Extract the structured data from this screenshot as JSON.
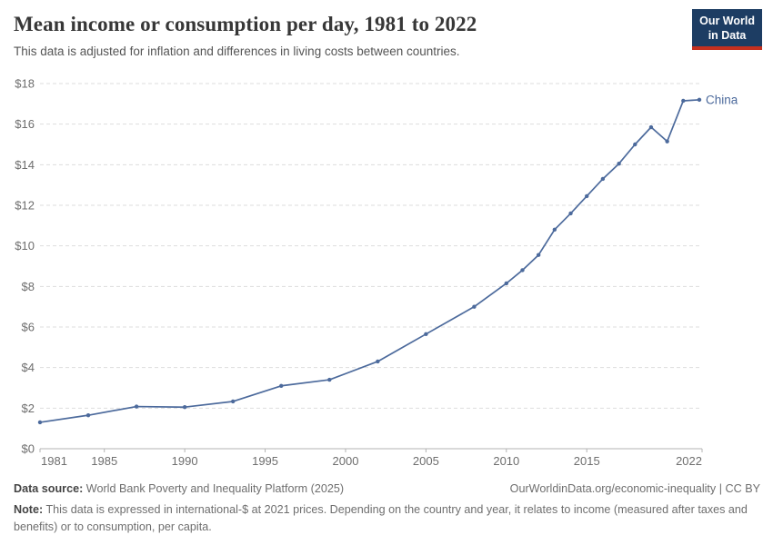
{
  "header": {
    "title": "Mean income or consumption per day, 1981 to 2022",
    "subtitle": "This data is adjusted for inflation and differences in living costs between countries.",
    "logo_line1": "Our World",
    "logo_line2": "in Data"
  },
  "chart_data": {
    "type": "line",
    "title": "Mean income or consumption per day, 1981 to 2022",
    "xlabel": "",
    "ylabel": "",
    "xlim": [
      1981,
      2022
    ],
    "ylim": [
      0,
      18
    ],
    "grid": "dashed horizontal gridlines",
    "legend_position": "label at end of line",
    "x_tick_values": [
      1981,
      1985,
      1990,
      1995,
      2000,
      2005,
      2010,
      2015,
      2022
    ],
    "x_tick_labels": [
      "1981",
      "1985",
      "1990",
      "1995",
      "2000",
      "2005",
      "2010",
      "2015",
      "2022"
    ],
    "y_tick_values": [
      0,
      2,
      4,
      6,
      8,
      10,
      12,
      14,
      16,
      18
    ],
    "y_tick_labels": [
      "$0",
      "$2",
      "$4",
      "$6",
      "$8",
      "$10",
      "$12",
      "$14",
      "$16",
      "$18"
    ],
    "series": [
      {
        "name": "China",
        "color": "#4C6A9C",
        "x": [
          1981,
          1984,
          1987,
          1990,
          1993,
          1996,
          1999,
          2002,
          2005,
          2008,
          2010,
          2011,
          2012,
          2013,
          2014,
          2015,
          2016,
          2017,
          2018,
          2019,
          2020,
          2021,
          2022
        ],
        "values": [
          1.3,
          1.65,
          2.08,
          2.05,
          2.33,
          3.1,
          3.4,
          4.3,
          5.65,
          7.0,
          8.15,
          8.8,
          9.55,
          10.8,
          11.6,
          12.45,
          13.3,
          14.05,
          15.0,
          15.85,
          15.15,
          17.15,
          17.2
        ]
      }
    ]
  },
  "footer": {
    "source_label": "Data source:",
    "source_text": "World Bank Poverty and Inequality Platform (2025)",
    "link_text": "OurWorldinData.org/economic-inequality | CC BY",
    "note_label": "Note:",
    "note_text": "This data is expressed in international-$ at 2021 prices. Depending on the country and year, it relates to income (measured after taxes and benefits) or to consumption, per capita."
  },
  "colors": {
    "line": "#4C6A9C",
    "grid": "#DDDDDD",
    "axis": "#B3B3B3",
    "tick_label": "#6E6E6E",
    "title": "#373737",
    "subtitle": "#555555",
    "logo_bg": "#1D3D63",
    "logo_bar": "#C5301F",
    "footer_text": "#6E6E6E",
    "footer_label": "#444444"
  }
}
